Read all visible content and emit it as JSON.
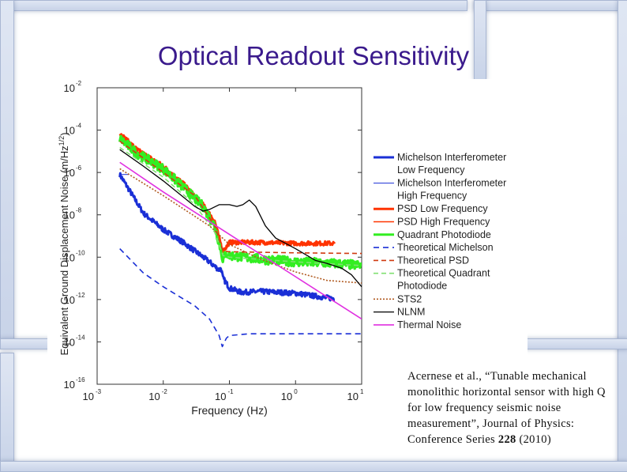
{
  "slide": {
    "title": "Optical Readout Sensitivity",
    "citation": {
      "before_bold": "Acernese et al., “Tunable mechanical monolithic horizontal sensor with high Q for low frequency seismic noise measurement”, Journal of Physics: Conference Series ",
      "bold": "228",
      "after_bold": " (2010)"
    }
  },
  "chart_data": {
    "type": "line",
    "xlabel": "Frequency (Hz)",
    "ylabel": "Equivalent Ground Displacement Noise (m/Hz^{1/2})",
    "xscale": "log",
    "yscale": "log",
    "xlim": [
      0.001,
      10
    ],
    "ylim": [
      1e-16,
      0.01
    ],
    "x_ticks": [
      {
        "value": 0.001,
        "base": "10",
        "exp": "-3"
      },
      {
        "value": 0.01,
        "base": "10",
        "exp": "-2"
      },
      {
        "value": 0.1,
        "base": "10",
        "exp": "-1"
      },
      {
        "value": 1,
        "base": "10",
        "exp": "0"
      },
      {
        "value": 10,
        "base": "10",
        "exp": "1"
      }
    ],
    "y_ticks": [
      {
        "value": 0.01,
        "base": "10",
        "exp": "-2"
      },
      {
        "value": 0.0001,
        "base": "10",
        "exp": "-4"
      },
      {
        "value": 1e-06,
        "base": "10",
        "exp": "-6"
      },
      {
        "value": 1e-08,
        "base": "10",
        "exp": "-8"
      },
      {
        "value": 1e-10,
        "base": "10",
        "exp": "-10"
      },
      {
        "value": 1e-12,
        "base": "10",
        "exp": "-12"
      },
      {
        "value": 1e-14,
        "base": "10",
        "exp": "-14"
      },
      {
        "value": 1e-16,
        "base": "10",
        "exp": "-16"
      }
    ],
    "grid": false,
    "legend_position": "right",
    "series": [
      {
        "name": "Michelson Interferometer Low Frequency",
        "legend_lines": [
          "Michelson Interferometer",
          "Low Frequency"
        ],
        "color": "#1a2fd6",
        "width": 3,
        "dash": "",
        "noise": 0.12,
        "points": [
          [
            0.0022,
            8e-07
          ],
          [
            0.005,
            1.2e-08
          ],
          [
            0.01,
            2e-09
          ],
          [
            0.02,
            5e-10
          ],
          [
            0.05,
            6e-11
          ],
          [
            0.07,
            2.5e-11
          ],
          [
            0.075,
            3e-11
          ],
          [
            0.08,
            1e-11
          ],
          [
            0.09,
            6e-12
          ],
          [
            0.1,
            3.5e-12
          ],
          [
            0.15,
            2.2e-12
          ],
          [
            0.3,
            2.4e-12
          ],
          [
            1,
            2e-12
          ],
          [
            3,
            1.2e-12
          ],
          [
            4,
            1.1e-12
          ]
        ]
      },
      {
        "name": "Michelson Interferometer High Frequency",
        "legend_lines": [
          "Michelson Interferometer",
          "High Frequency"
        ],
        "color": "#1a2fd6",
        "width": 1,
        "dash": "",
        "noise": 0,
        "points": [
          [
            0.0022,
            8e-07
          ],
          [
            0.003,
            8e-07
          ]
        ]
      },
      {
        "name": "PSD Low Frequency",
        "legend_lines": [
          "PSD Low Frequency"
        ],
        "color": "#ff3300",
        "width": 3,
        "dash": "",
        "noise": 0.1,
        "points": [
          [
            0.0022,
            7e-05
          ],
          [
            0.004,
            1.2e-05
          ],
          [
            0.01,
            2e-06
          ],
          [
            0.02,
            3e-07
          ],
          [
            0.04,
            3e-08
          ],
          [
            0.06,
            5e-09
          ],
          [
            0.07,
            8e-10
          ],
          [
            0.08,
            2e-10
          ],
          [
            0.09,
            3e-10
          ],
          [
            0.1,
            5e-10
          ],
          [
            0.3,
            5e-10
          ],
          [
            1,
            4.5e-10
          ],
          [
            3,
            4.5e-10
          ],
          [
            4,
            4.5e-10
          ]
        ]
      },
      {
        "name": "PSD High Frequency",
        "legend_lines": [
          "PSD High Frequency"
        ],
        "color": "#ff3300",
        "width": 1.5,
        "dash": "",
        "noise": 0.06,
        "points": [
          [
            0.0022,
            6e-05
          ],
          [
            0.004,
            1e-05
          ],
          [
            0.01,
            1.8e-06
          ],
          [
            0.02,
            2.6e-07
          ],
          [
            0.04,
            2.6e-08
          ],
          [
            0.06,
            4e-09
          ]
        ]
      },
      {
        "name": "Quadrant Photodiode",
        "legend_lines": [
          "Quadrant Photodiode"
        ],
        "color": "#33ee22",
        "width": 3.5,
        "dash": "",
        "noise": 0.22,
        "points": [
          [
            0.0022,
            4e-05
          ],
          [
            0.004,
            8e-06
          ],
          [
            0.01,
            1.5e-06
          ],
          [
            0.02,
            2e-07
          ],
          [
            0.04,
            2.5e-08
          ],
          [
            0.06,
            3e-09
          ],
          [
            0.07,
            5e-10
          ],
          [
            0.08,
            8e-11
          ],
          [
            0.09,
            1.5e-10
          ],
          [
            0.1,
            1.2e-10
          ],
          [
            0.3,
            8e-11
          ],
          [
            1,
            6e-11
          ],
          [
            4,
            5e-11
          ],
          [
            10,
            4e-11
          ]
        ]
      },
      {
        "name": "Theoretical Michelson",
        "legend_lines": [
          "Theoretical Michelson"
        ],
        "color": "#1a2fd6",
        "width": 1.6,
        "dash": "7,5",
        "noise": 0,
        "points": [
          [
            0.0022,
            2.5e-10
          ],
          [
            0.005,
            1.8e-11
          ],
          [
            0.01,
            4e-12
          ],
          [
            0.03,
            5e-13
          ],
          [
            0.05,
            1.2e-13
          ],
          [
            0.07,
            2e-14
          ],
          [
            0.078,
            6e-15
          ],
          [
            0.09,
            1.5e-14
          ],
          [
            0.1,
            2e-14
          ],
          [
            0.2,
            2.4e-14
          ],
          [
            1,
            2.4e-14
          ],
          [
            4,
            2.4e-14
          ],
          [
            10,
            2.4e-14
          ]
        ]
      },
      {
        "name": "Theoretical PSD",
        "legend_lines": [
          "Theoretical PSD"
        ],
        "color": "#d03a10",
        "width": 1.6,
        "dash": "6,4",
        "noise": 0,
        "points": [
          [
            0.0022,
            3e-05
          ],
          [
            0.01,
            1e-06
          ],
          [
            0.03,
            8e-08
          ],
          [
            0.06,
            3e-09
          ],
          [
            0.08,
            2e-10
          ],
          [
            0.1,
            1.8e-10
          ],
          [
            1,
            1.6e-10
          ],
          [
            10,
            1.5e-10
          ]
        ]
      },
      {
        "name": "Theoretical Quadrant Photodiode",
        "legend_lines": [
          "Theoretical Quadrant",
          "Photodiode"
        ],
        "color": "#80e070",
        "width": 1.6,
        "dash": "6,4",
        "noise": 0,
        "points": [
          [
            0.0022,
            1.5e-05
          ],
          [
            0.01,
            6e-07
          ],
          [
            0.03,
            3e-08
          ],
          [
            0.06,
            1.5e-09
          ],
          [
            0.08,
            1.2e-10
          ],
          [
            0.1,
            1e-10
          ],
          [
            1,
            6e-11
          ],
          [
            10,
            4e-11
          ]
        ]
      },
      {
        "name": "STS2",
        "legend_lines": [
          "STS2"
        ],
        "color": "#b05a20",
        "width": 1.6,
        "dash": "2,2",
        "noise": 0,
        "points": [
          [
            0.0022,
            1.5e-06
          ],
          [
            0.01,
            8e-08
          ],
          [
            0.05,
            3e-09
          ],
          [
            0.1,
            4e-10
          ],
          [
            0.3,
            8e-11
          ],
          [
            1,
            2e-11
          ],
          [
            3,
            8e-12
          ],
          [
            10,
            6e-12
          ]
        ]
      },
      {
        "name": "NLNM",
        "legend_lines": [
          "NLNM"
        ],
        "color": "#000000",
        "width": 1.3,
        "dash": "",
        "noise": 0,
        "points": [
          [
            0.0022,
            1.2e-05
          ],
          [
            0.005,
            2e-06
          ],
          [
            0.01,
            4e-07
          ],
          [
            0.02,
            7e-08
          ],
          [
            0.03,
            2.5e-08
          ],
          [
            0.04,
            1.5e-08
          ],
          [
            0.05,
            1.8e-08
          ],
          [
            0.07,
            3e-08
          ],
          [
            0.1,
            3e-08
          ],
          [
            0.13,
            2.5e-08
          ],
          [
            0.16,
            3e-08
          ],
          [
            0.2,
            5e-08
          ],
          [
            0.25,
            2.5e-08
          ],
          [
            0.35,
            3e-09
          ],
          [
            0.5,
            8e-10
          ],
          [
            1,
            2.5e-10
          ],
          [
            1.5,
            1.2e-10
          ],
          [
            2,
            7e-11
          ],
          [
            3,
            5e-11
          ],
          [
            5,
            3e-11
          ],
          [
            7,
            1.5e-11
          ],
          [
            10,
            4e-12
          ]
        ]
      },
      {
        "name": "Thermal Noise",
        "legend_lines": [
          "Thermal Noise"
        ],
        "color": "#e030e0",
        "width": 1.6,
        "dash": "",
        "noise": 0,
        "points": [
          [
            0.0022,
            3e-06
          ],
          [
            0.01,
            1.2e-07
          ],
          [
            0.1,
            1.2e-09
          ],
          [
            1,
            1.2e-11
          ],
          [
            10,
            1.2e-13
          ]
        ]
      }
    ]
  }
}
